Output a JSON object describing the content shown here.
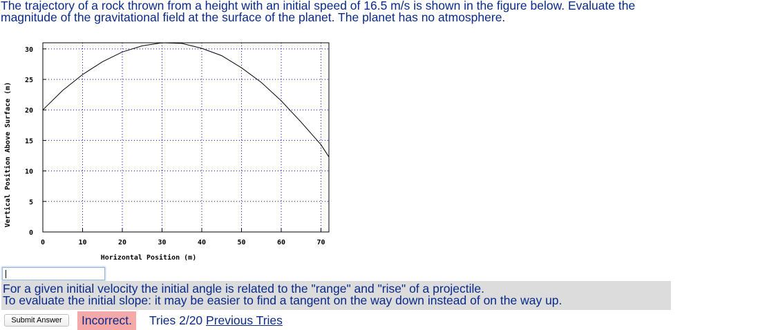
{
  "question": {
    "line1": "The trajectory of a rock thrown from a height with an initial speed of 16.5 m/s is shown in the figure below. Evaluate the",
    "line2": "magnitude of the gravitational field at the surface of the planet. The planet has no atmosphere."
  },
  "chart_data": {
    "type": "line",
    "xlabel": "Horizontal Position (m)",
    "ylabel": "Vertical Position Above Surface (m)",
    "xlim": [
      0,
      72
    ],
    "ylim": [
      0,
      31
    ],
    "xticks": [
      0,
      10,
      20,
      30,
      40,
      50,
      60,
      70
    ],
    "yticks": [
      0,
      5,
      10,
      15,
      20,
      25,
      30
    ],
    "grid": true,
    "grid_style": "dotted",
    "grid_color": "#0000cc",
    "series": [
      {
        "color": "#000000",
        "x": [
          0,
          5,
          10,
          15,
          20,
          25,
          30,
          35,
          40,
          45,
          50,
          55,
          60,
          65,
          70,
          72
        ],
        "y": [
          20.0,
          23.2,
          25.8,
          27.9,
          29.5,
          30.5,
          31.0,
          30.9,
          30.1,
          28.9,
          26.9,
          24.5,
          21.5,
          18.0,
          14.3,
          12.3
        ]
      }
    ]
  },
  "answer": {
    "value": "",
    "placeholder": ""
  },
  "hint": {
    "line1": "For a given initial velocity the initial angle is related to the \"range\" and \"rise\" of a projectile.",
    "line2": "To evaluate the initial slope: it may be easier to find a tangent on the way down instead of on the way up."
  },
  "submit": {
    "label": "Submit Answer"
  },
  "status": {
    "text": "Incorrect.",
    "color": "#f6a9a9"
  },
  "tries": {
    "text": "Tries 2/20",
    "previous_link": "Previous Tries"
  }
}
